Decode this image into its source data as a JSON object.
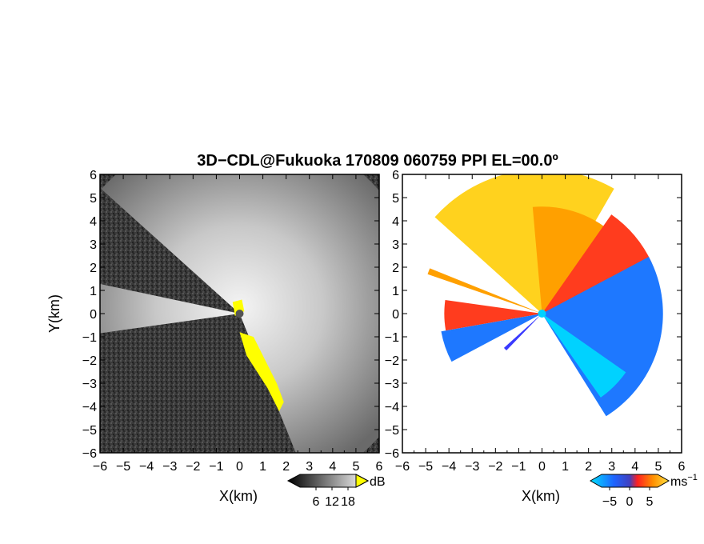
{
  "title": "3D−CDL@Fukuoka 170809 060759 PPI EL=00.0º",
  "chart_data": [
    {
      "type": "heatmap",
      "panel": "left",
      "quantity": "backscatter intensity",
      "xlabel": "X(km)",
      "ylabel": "Y(km)",
      "xlim": [
        -6,
        6
      ],
      "ylim": [
        -6,
        6
      ],
      "x_ticks": [
        "−6",
        "−5",
        "−4",
        "−3",
        "−2",
        "−1",
        "0",
        "1",
        "2",
        "3",
        "4",
        "5",
        "6"
      ],
      "y_ticks": [
        "6",
        "5",
        "4",
        "3",
        "2",
        "1",
        "0",
        "−1",
        "−2",
        "−3",
        "−4",
        "−5",
        "−6"
      ],
      "colorbar": {
        "unit": "dB",
        "ticks": [
          "6",
          "12",
          "18"
        ],
        "range": [
          0,
          21
        ],
        "colormap": "grayscale"
      },
      "overlay_color": "#ffff00",
      "noise_color": "#3a3a3a",
      "signal_colors": [
        "#5a5a5a",
        "#9a9a9a",
        "#e8e8e8"
      ]
    },
    {
      "type": "heatmap",
      "panel": "right",
      "quantity": "radial velocity",
      "xlabel": "X(km)",
      "xlim": [
        -6,
        6
      ],
      "ylim": [
        -6,
        6
      ],
      "x_ticks": [
        "−6",
        "−5",
        "−4",
        "−3",
        "−2",
        "−1",
        "0",
        "1",
        "2",
        "3",
        "4",
        "5",
        "6"
      ],
      "y_ticks": [
        "6",
        "5",
        "4",
        "3",
        "2",
        "1",
        "0",
        "−1",
        "−2",
        "−3",
        "−4",
        "−5",
        "−6"
      ],
      "colorbar": {
        "unit": "ms",
        "unit_exponent": "−1",
        "ticks": [
          "−5",
          "0",
          "5"
        ],
        "range": [
          -7,
          7
        ],
        "colormap": "cyan-blue-red-orange-yellow"
      },
      "colors": {
        "positive_high": "#ffd21e",
        "positive_mid": "#ffa000",
        "positive_low": "#ff3c1e",
        "negative_low": "#1e78ff",
        "negative_high": "#00d2ff"
      }
    }
  ]
}
